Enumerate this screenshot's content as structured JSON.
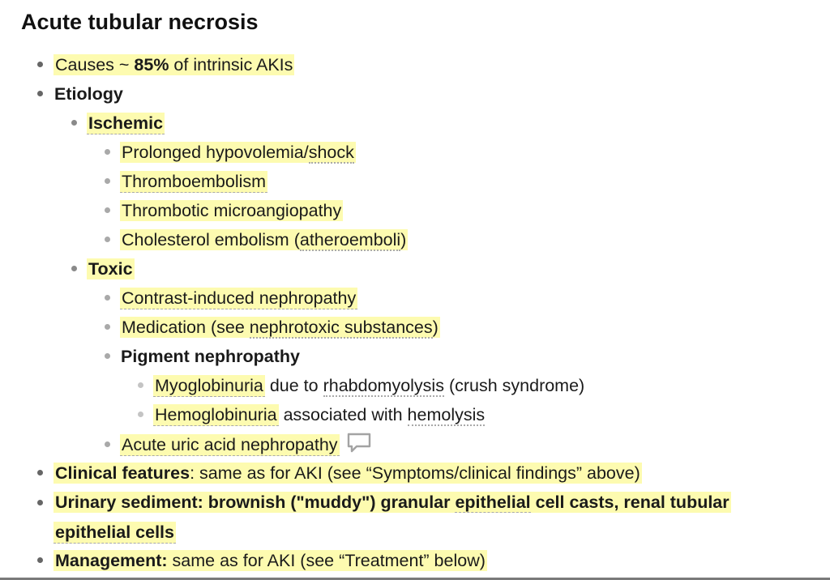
{
  "title": "Acute tubular necrosis",
  "causes": {
    "pre": "Causes ~ ",
    "pct": "85%",
    "post": " of intrinsic AKIs"
  },
  "etiology": "Etiology",
  "ischemic": {
    "label": "Ischemic",
    "items": {
      "hypo_pre": "Prolonged hypovolemia/",
      "hypo_link": "shock",
      "thrombo": "Thromboembolism",
      "micro": "Thrombotic microangiopathy",
      "chol_pre": "Cholesterol embolism (",
      "chol_link": "atheroemboli",
      "chol_post": ")"
    }
  },
  "toxic": {
    "label": "Toxic",
    "contrast": "Contrast-induced nephropathy",
    "med_pre": "Medication (see ",
    "med_link": "nephrotoxic substances",
    "med_post": ")",
    "pigment": "Pigment nephropathy",
    "myo": "Myoglobinuria",
    "myo_mid": " due to ",
    "myo_link": "rhabdomyolysis",
    "myo_post": " (crush syndrome)",
    "hemo": "Hemoglobinuria",
    "hemo_mid": " associated with ",
    "hemo_link": "hemolysis",
    "uric": "Acute uric acid nephropathy"
  },
  "clinical": {
    "label": "Clinical features",
    "text": ": same as for AKI (see “Symptoms/clinical findings” above)"
  },
  "sediment": {
    "label": "Urinary sediment",
    "text_pre": ": brownish (\"muddy\") granular ",
    "link": "epithelial",
    "text_post": " cell casts, renal tubular",
    "line2": "epithelial cells"
  },
  "management": {
    "label": "Management:",
    "text": " same as for AKI (see “Treatment” below)"
  },
  "colors": {
    "highlight": "#fdfbb0",
    "text": "#1a1a1a",
    "underline": "#a9a9a9"
  },
  "icons": {
    "comment": "speech-bubble-icon"
  }
}
